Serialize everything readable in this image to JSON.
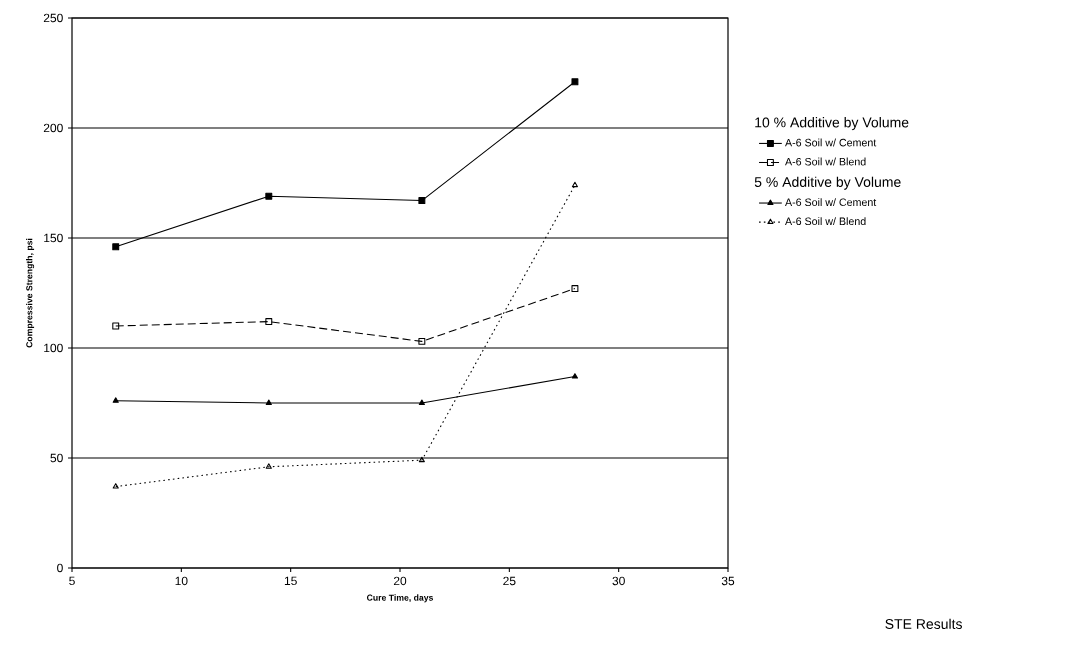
{
  "chart_data": {
    "type": "line",
    "xlabel": "Cure Time, days",
    "ylabel": "Compressive Strength, psi",
    "x": [
      7,
      14,
      21,
      28
    ],
    "series": [
      {
        "name": "A-6 Soil w/ Cement",
        "color": "#000000",
        "marker": "square",
        "line_style": "solid",
        "values": [
          146,
          169,
          167,
          221
        ]
      },
      {
        "name": "A-6 Soil w/ Blend",
        "color": "#000000",
        "marker": "square",
        "line_style": "dashed",
        "values": [
          110,
          112,
          103,
          127
        ]
      },
      {
        "name": "A-6 Soil w/ Cement",
        "color": "#000000",
        "marker": "triangle",
        "line_style": "solid",
        "values": [
          76,
          75,
          75,
          87
        ]
      },
      {
        "name": "A-6 Soil w/ Blend",
        "color": "#000000",
        "marker": "triangle",
        "line_style": "dotted",
        "values": [
          37,
          46,
          49,
          174
        ]
      }
    ],
    "xlim": [
      5,
      35
    ],
    "xticks": [
      5,
      10,
      15,
      20,
      25,
      30,
      35
    ],
    "ylim": [
      0,
      250
    ],
    "yticks": [
      0,
      50,
      100,
      150,
      200,
      250
    ],
    "grid": "y",
    "legend": "right",
    "annotations": [
      "10 % Additive by Volume",
      "5 % Additive by Volume",
      "STE Results"
    ]
  }
}
